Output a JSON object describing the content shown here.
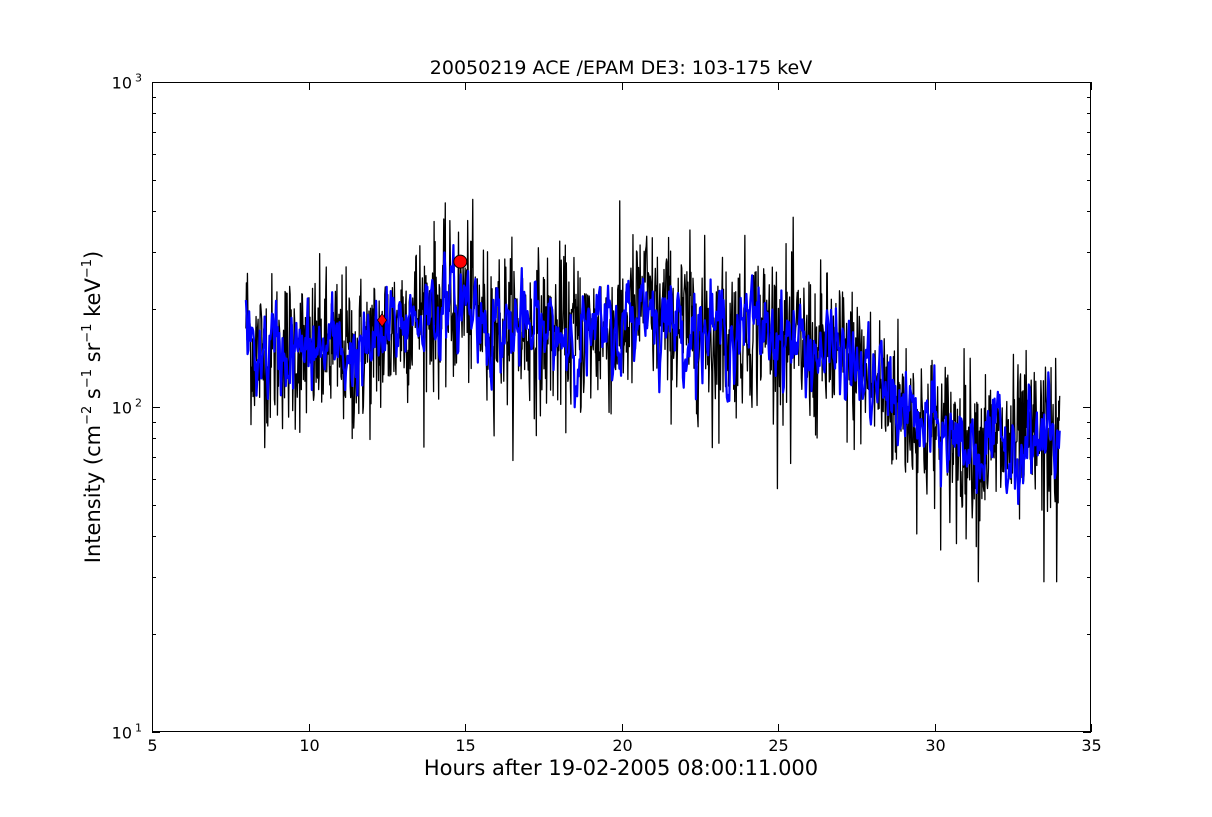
{
  "chart_data": {
    "type": "line",
    "title": "20050219 ACE /EPAM DE3: 103-175 keV",
    "xlabel": "Hours after 19-02-2005 08:00:11.000",
    "ylabel": {
      "prefix": "Intensity (cm",
      "sup1": "−2",
      "mid1": " s",
      "sup2": "−1",
      "mid2": " sr",
      "sup3": "−1",
      "mid3": " keV",
      "sup4": "−1",
      "suffix": ")"
    },
    "xlim": [
      5,
      35
    ],
    "ylim": [
      10,
      1000
    ],
    "yscale": "log",
    "grid": false,
    "legend": "none",
    "x_ticks": [
      5,
      10,
      15,
      20,
      25,
      30,
      35
    ],
    "y_ticks": [
      {
        "value": 10,
        "base": "10",
        "exp": "1"
      },
      {
        "value": 100,
        "base": "10",
        "exp": "2"
      },
      {
        "value": 1000,
        "base": "10",
        "exp": "3"
      }
    ],
    "series": [
      {
        "color": "#000000",
        "style": "raw",
        "noise": 0.12,
        "spikes": [
          [
            8.6,
            75
          ],
          [
            11.4,
            80
          ],
          [
            15.7,
            105
          ],
          [
            20.6,
            315
          ],
          [
            22.9,
            75
          ],
          [
            25.4,
            67
          ],
          [
            26.2,
            82
          ],
          [
            27.6,
            190
          ],
          [
            30.7,
            38
          ],
          [
            31.4,
            29
          ],
          [
            33.5,
            29
          ],
          [
            33.9,
            29
          ]
        ],
        "envelope": {
          "x": [
            8.0,
            8.05,
            8.2,
            8.5,
            9.0,
            9.5,
            10.0,
            10.5,
            11.0,
            11.5,
            12.0,
            12.5,
            13.0,
            13.5,
            14.0,
            14.5,
            14.8,
            15.0,
            15.5,
            16.0,
            16.5,
            17.0,
            17.5,
            18.0,
            18.5,
            19.0,
            19.5,
            20.0,
            20.5,
            20.7,
            21.0,
            21.5,
            22.0,
            22.5,
            23.0,
            23.5,
            24.0,
            24.5,
            25.0,
            25.5,
            26.0,
            26.5,
            27.0,
            27.5,
            28.0,
            28.5,
            29.0,
            29.5,
            30.0,
            30.5,
            31.0,
            31.5,
            32.0,
            32.5,
            33.0,
            33.5,
            34.0
          ],
          "y": [
            190,
            175,
            150,
            145,
            148,
            150,
            145,
            150,
            150,
            145,
            150,
            165,
            185,
            195,
            200,
            200,
            210,
            215,
            190,
            180,
            175,
            170,
            168,
            170,
            168,
            165,
            168,
            175,
            195,
            230,
            195,
            185,
            180,
            175,
            170,
            170,
            175,
            180,
            170,
            160,
            150,
            148,
            145,
            130,
            120,
            110,
            100,
            88,
            82,
            80,
            78,
            76,
            75,
            76,
            78,
            80,
            75
          ]
        }
      },
      {
        "color": "#0000ff",
        "style": "smoothed",
        "noise": 0.06,
        "envelope": {
          "x": [
            8.0,
            8.05,
            8.2,
            8.5,
            9.0,
            9.5,
            10.0,
            10.5,
            11.0,
            11.5,
            12.0,
            12.5,
            13.0,
            13.5,
            14.0,
            14.5,
            14.8,
            15.0,
            15.5,
            16.0,
            16.5,
            17.0,
            17.5,
            18.0,
            18.5,
            19.0,
            19.5,
            20.0,
            20.5,
            20.7,
            21.0,
            21.5,
            22.0,
            22.5,
            23.0,
            23.5,
            24.0,
            24.5,
            25.0,
            25.5,
            26.0,
            26.5,
            27.0,
            27.5,
            28.0,
            28.5,
            29.0,
            29.5,
            30.0,
            30.5,
            31.0,
            31.5,
            32.0,
            32.5,
            33.0,
            33.5,
            34.0
          ],
          "y": [
            190,
            175,
            150,
            145,
            148,
            150,
            145,
            150,
            150,
            145,
            150,
            165,
            185,
            195,
            200,
            200,
            210,
            215,
            190,
            180,
            175,
            170,
            168,
            170,
            168,
            165,
            168,
            175,
            195,
            230,
            195,
            185,
            180,
            175,
            170,
            170,
            175,
            180,
            170,
            160,
            150,
            148,
            145,
            130,
            120,
            110,
            100,
            88,
            82,
            80,
            78,
            76,
            75,
            76,
            78,
            80,
            75
          ]
        }
      }
    ],
    "markers": [
      {
        "x": 12.35,
        "y": 185,
        "shape": "diamond",
        "color": "#ff0000"
      },
      {
        "x": 14.85,
        "y": 280,
        "shape": "circle",
        "color": "#ff0000"
      }
    ]
  }
}
